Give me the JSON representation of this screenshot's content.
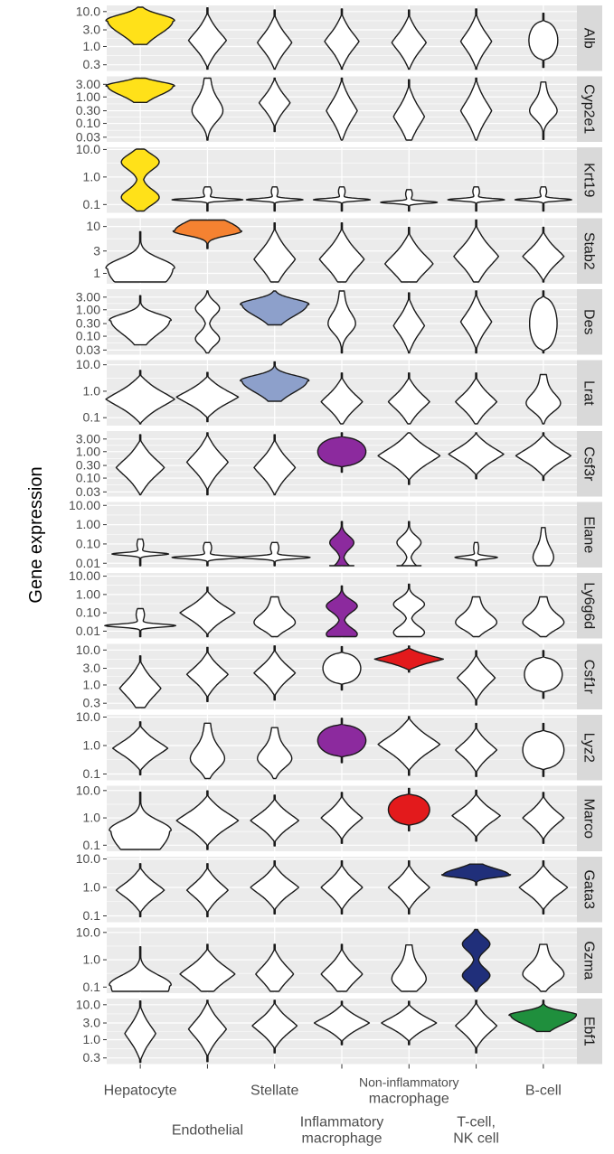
{
  "chart_data": {
    "type": "violin",
    "ylabel": "Gene expression",
    "y_scale": "log10",
    "categories": [
      "Hepatocyte",
      "Endothelial",
      "Stellate",
      "Inflammatory macrophage",
      "Non-inflammatory macrophage",
      "T-cell, NK cell",
      "B-cell"
    ],
    "category_label_lines": [
      [
        "Hepatocyte"
      ],
      [
        "Endothelial"
      ],
      [
        "Stellate"
      ],
      [
        "Inflammatory",
        "macrophage"
      ],
      [
        "Non-inflammatory",
        "macrophage"
      ],
      [
        "T-cell,",
        "NK cell"
      ],
      [
        "B-cell"
      ]
    ],
    "category_label_row": [
      0,
      1,
      0,
      1,
      0,
      1,
      0
    ],
    "colors": {
      "Hepatocyte": "#FFE119",
      "Endothelial": "#F58231",
      "Stellate": "#8DA0CB",
      "Inflammatory macrophage": "#8C2A9E",
      "Non-inflammatory macrophage": "#E31A1C",
      "T-cell, NK cell": "#202F7A",
      "B-cell": "#1F8F3D",
      "default": "#FFFFFF"
    },
    "panel_background": "#EBEBEB",
    "strip_background": "#D9D9D9",
    "grid": true,
    "panels": [
      {
        "gene": "Alb",
        "ylim": [
          0.2,
          15
        ],
        "ticks": [
          "10.0",
          "3.0",
          "1.0",
          "0.3"
        ],
        "highlight": 0,
        "violins": [
          {
            "median": 5.5,
            "spread": 0.22,
            "width": 1.0,
            "shape": "skewup"
          },
          {
            "median": 1.5,
            "spread": 0.3,
            "width": 0.55,
            "shape": "diamond"
          },
          {
            "median": 1.3,
            "spread": 0.3,
            "width": 0.5,
            "shape": "diamond"
          },
          {
            "median": 1.4,
            "spread": 0.3,
            "width": 0.5,
            "shape": "diamond"
          },
          {
            "median": 1.3,
            "spread": 0.3,
            "width": 0.5,
            "shape": "diamond"
          },
          {
            "median": 1.4,
            "spread": 0.3,
            "width": 0.45,
            "shape": "diamond"
          },
          {
            "median": 1.5,
            "spread": 0.25,
            "width": 0.42,
            "shape": "round"
          }
        ]
      },
      {
        "gene": "Cyp2e1",
        "ylim": [
          0.02,
          6
        ],
        "ticks": [
          "3.00",
          "1.00",
          "0.30",
          "0.10",
          "0.03"
        ],
        "highlight": 0,
        "violins": [
          {
            "median": 2.6,
            "spread": 0.2,
            "width": 1.0,
            "shape": "skewup"
          },
          {
            "median": 0.3,
            "spread": 0.45,
            "width": 0.45,
            "shape": "tailup"
          },
          {
            "median": 0.6,
            "spread": 0.35,
            "width": 0.45,
            "shape": "diamond"
          },
          {
            "median": 0.3,
            "spread": 0.45,
            "width": 0.45,
            "shape": "diamond"
          },
          {
            "median": 0.18,
            "spread": 0.45,
            "width": 0.45,
            "shape": "diamond"
          },
          {
            "median": 0.3,
            "spread": 0.45,
            "width": 0.45,
            "shape": "diamond"
          },
          {
            "median": 0.3,
            "spread": 0.35,
            "width": 0.4,
            "shape": "tailup"
          }
        ]
      },
      {
        "gene": "Krt19",
        "ylim": [
          0.05,
          12
        ],
        "ticks": [
          "10.0",
          "1.0",
          "0.1"
        ],
        "highlight": 0,
        "violins": [
          {
            "median": 0.8,
            "spread": 0.5,
            "width": 0.55,
            "shape": "hourglass"
          },
          {
            "median": 0.15,
            "spread": 0.15,
            "width": 1.0,
            "shape": "spike"
          },
          {
            "median": 0.15,
            "spread": 0.15,
            "width": 0.8,
            "shape": "spike"
          },
          {
            "median": 0.15,
            "spread": 0.15,
            "width": 0.8,
            "shape": "spike"
          },
          {
            "median": 0.12,
            "spread": 0.15,
            "width": 0.8,
            "shape": "spike"
          },
          {
            "median": 0.15,
            "spread": 0.15,
            "width": 0.8,
            "shape": "spike"
          },
          {
            "median": 0.15,
            "spread": 0.15,
            "width": 0.8,
            "shape": "spike"
          }
        ]
      },
      {
        "gene": "Stab2",
        "ylim": [
          0.6,
          15
        ],
        "ticks": [
          "10",
          "3",
          "1"
        ],
        "highlight": 1,
        "violins": [
          {
            "median": 1.3,
            "spread": 0.25,
            "width": 1.0,
            "shape": "skewup"
          },
          {
            "median": 8.0,
            "spread": 0.12,
            "width": 1.0,
            "shape": "skewdown"
          },
          {
            "median": 2.0,
            "spread": 0.25,
            "width": 0.6,
            "shape": "diamond"
          },
          {
            "median": 2.0,
            "spread": 0.25,
            "width": 0.65,
            "shape": "diamond"
          },
          {
            "median": 1.6,
            "spread": 0.25,
            "width": 0.7,
            "shape": "diamond"
          },
          {
            "median": 2.3,
            "spread": 0.25,
            "width": 0.65,
            "shape": "diamond"
          },
          {
            "median": 2.3,
            "spread": 0.2,
            "width": 0.6,
            "shape": "diamond"
          }
        ]
      },
      {
        "gene": "Des",
        "ylim": [
          0.02,
          6
        ],
        "ticks": [
          "3.00",
          "1.00",
          "0.30",
          "0.10",
          "0.03"
        ],
        "highlight": 2,
        "violins": [
          {
            "median": 0.4,
            "spread": 0.3,
            "width": 0.9,
            "shape": "skewup"
          },
          {
            "median": 0.3,
            "spread": 0.45,
            "width": 0.35,
            "shape": "hourglass"
          },
          {
            "median": 1.6,
            "spread": 0.25,
            "width": 1.0,
            "shape": "skewup"
          },
          {
            "median": 0.3,
            "spread": 0.4,
            "width": 0.4,
            "shape": "tailup"
          },
          {
            "median": 0.25,
            "spread": 0.4,
            "width": 0.45,
            "shape": "diamond"
          },
          {
            "median": 0.35,
            "spread": 0.4,
            "width": 0.45,
            "shape": "diamond"
          },
          {
            "median": 0.3,
            "spread": 0.45,
            "width": 0.4,
            "shape": "round"
          }
        ]
      },
      {
        "gene": "Lrat",
        "ylim": [
          0.05,
          15
        ],
        "ticks": [
          "10.0",
          "1.0",
          "0.1"
        ],
        "highlight": 2,
        "violins": [
          {
            "median": 0.5,
            "spread": 0.35,
            "width": 1.0,
            "shape": "diamond"
          },
          {
            "median": 0.6,
            "spread": 0.3,
            "width": 0.9,
            "shape": "diamond"
          },
          {
            "median": 2.5,
            "spread": 0.25,
            "width": 1.0,
            "shape": "skewup"
          },
          {
            "median": 0.4,
            "spread": 0.35,
            "width": 0.6,
            "shape": "diamond"
          },
          {
            "median": 0.4,
            "spread": 0.35,
            "width": 0.6,
            "shape": "diamond"
          },
          {
            "median": 0.4,
            "spread": 0.35,
            "width": 0.6,
            "shape": "diamond"
          },
          {
            "median": 0.35,
            "spread": 0.35,
            "width": 0.5,
            "shape": "tailup"
          }
        ]
      },
      {
        "gene": "Csf3r",
        "ylim": [
          0.02,
          6
        ],
        "ticks": [
          "3.00",
          "1.00",
          "0.30",
          "0.10",
          "0.03"
        ],
        "highlight": 3,
        "violins": [
          {
            "median": 0.25,
            "spread": 0.4,
            "width": 0.7,
            "shape": "diamond"
          },
          {
            "median": 0.4,
            "spread": 0.4,
            "width": 0.6,
            "shape": "diamond"
          },
          {
            "median": 0.25,
            "spread": 0.4,
            "width": 0.6,
            "shape": "diamond"
          },
          {
            "median": 1.0,
            "spread": 0.25,
            "width": 0.7,
            "shape": "round"
          },
          {
            "median": 0.7,
            "spread": 0.35,
            "width": 0.9,
            "shape": "diamond"
          },
          {
            "median": 0.8,
            "spread": 0.3,
            "width": 0.8,
            "shape": "diamond"
          },
          {
            "median": 0.7,
            "spread": 0.3,
            "width": 0.8,
            "shape": "diamond"
          }
        ]
      },
      {
        "gene": "Elane",
        "ylim": [
          0.006,
          15
        ],
        "ticks": [
          "10.00",
          "1.00",
          "0.10",
          "0.01"
        ],
        "highlight": 3,
        "violins": [
          {
            "median": 0.03,
            "spread": 0.25,
            "width": 0.8,
            "shape": "spike"
          },
          {
            "median": 0.02,
            "spread": 0.25,
            "width": 1.0,
            "shape": "spike"
          },
          {
            "median": 0.02,
            "spread": 0.25,
            "width": 1.0,
            "shape": "spike"
          },
          {
            "median": 0.02,
            "spread": 0.6,
            "width": 0.35,
            "shape": "hourglass"
          },
          {
            "median": 0.02,
            "spread": 0.6,
            "width": 0.35,
            "shape": "hourglass"
          },
          {
            "median": 0.02,
            "spread": 0.25,
            "width": 0.6,
            "shape": "spike"
          },
          {
            "median": 0.02,
            "spread": 0.5,
            "width": 0.3,
            "shape": "tailup"
          }
        ]
      },
      {
        "gene": "Ly6g6d",
        "ylim": [
          0.004,
          15
        ],
        "ticks": [
          "10.00",
          "1.00",
          "0.10",
          "0.01"
        ],
        "highlight": 3,
        "violins": [
          {
            "median": 0.02,
            "spread": 0.3,
            "width": 1.0,
            "shape": "spike"
          },
          {
            "median": 0.1,
            "spread": 0.45,
            "width": 0.8,
            "shape": "diamond"
          },
          {
            "median": 0.03,
            "spread": 0.45,
            "width": 0.6,
            "shape": "tailup"
          },
          {
            "median": 0.04,
            "spread": 0.6,
            "width": 0.45,
            "shape": "hourglass"
          },
          {
            "median": 0.05,
            "spread": 0.6,
            "width": 0.45,
            "shape": "hourglass"
          },
          {
            "median": 0.03,
            "spread": 0.45,
            "width": 0.6,
            "shape": "tailup"
          },
          {
            "median": 0.03,
            "spread": 0.45,
            "width": 0.6,
            "shape": "tailup"
          }
        ]
      },
      {
        "gene": "Csf1r",
        "ylim": [
          0.2,
          15
        ],
        "ticks": [
          "10.0",
          "3.0",
          "1.0",
          "0.3"
        ],
        "highlight": 4,
        "violins": [
          {
            "median": 0.8,
            "spread": 0.3,
            "width": 0.6,
            "shape": "diamond"
          },
          {
            "median": 2.0,
            "spread": 0.25,
            "width": 0.6,
            "shape": "diamond"
          },
          {
            "median": 2.2,
            "spread": 0.25,
            "width": 0.6,
            "shape": "diamond"
          },
          {
            "median": 3.0,
            "spread": 0.2,
            "width": 0.55,
            "shape": "round"
          },
          {
            "median": 5.5,
            "spread": 0.12,
            "width": 1.0,
            "shape": "diamond"
          },
          {
            "median": 1.6,
            "spread": 0.25,
            "width": 0.55,
            "shape": "diamond"
          },
          {
            "median": 2.0,
            "spread": 0.22,
            "width": 0.55,
            "shape": "round"
          }
        ]
      },
      {
        "gene": "Lyz2",
        "ylim": [
          0.06,
          12
        ],
        "ticks": [
          "10.0",
          "1.0",
          "0.1"
        ],
        "highlight": 3,
        "violins": [
          {
            "median": 0.8,
            "spread": 0.3,
            "width": 0.8,
            "shape": "diamond"
          },
          {
            "median": 0.35,
            "spread": 0.4,
            "width": 0.5,
            "shape": "tailup"
          },
          {
            "median": 0.35,
            "spread": 0.35,
            "width": 0.5,
            "shape": "tailup"
          },
          {
            "median": 1.5,
            "spread": 0.25,
            "width": 0.7,
            "shape": "round"
          },
          {
            "median": 1.1,
            "spread": 0.35,
            "width": 0.9,
            "shape": "diamond"
          },
          {
            "median": 0.7,
            "spread": 0.3,
            "width": 0.6,
            "shape": "diamond"
          },
          {
            "median": 0.7,
            "spread": 0.3,
            "width": 0.6,
            "shape": "round"
          }
        ]
      },
      {
        "gene": "Marco",
        "ylim": [
          0.06,
          15
        ],
        "ticks": [
          "10.0",
          "1.0",
          "0.1"
        ],
        "highlight": 4,
        "violins": [
          {
            "median": 0.35,
            "spread": 0.45,
            "width": 0.9,
            "shape": "skewup"
          },
          {
            "median": 0.8,
            "spread": 0.35,
            "width": 0.9,
            "shape": "diamond"
          },
          {
            "median": 0.8,
            "spread": 0.3,
            "width": 0.7,
            "shape": "diamond"
          },
          {
            "median": 1.0,
            "spread": 0.3,
            "width": 0.6,
            "shape": "diamond"
          },
          {
            "median": 2.0,
            "spread": 0.25,
            "width": 0.6,
            "shape": "round"
          },
          {
            "median": 1.2,
            "spread": 0.3,
            "width": 0.7,
            "shape": "diamond"
          },
          {
            "median": 1.0,
            "spread": 0.3,
            "width": 0.6,
            "shape": "diamond"
          }
        ]
      },
      {
        "gene": "Gata3",
        "ylim": [
          0.06,
          12
        ],
        "ticks": [
          "10.0",
          "1.0",
          "0.1"
        ],
        "highlight": 5,
        "violins": [
          {
            "median": 0.8,
            "spread": 0.3,
            "width": 0.7,
            "shape": "diamond"
          },
          {
            "median": 0.8,
            "spread": 0.3,
            "width": 0.6,
            "shape": "diamond"
          },
          {
            "median": 1.0,
            "spread": 0.3,
            "width": 0.7,
            "shape": "diamond"
          },
          {
            "median": 1.0,
            "spread": 0.3,
            "width": 0.6,
            "shape": "diamond"
          },
          {
            "median": 1.0,
            "spread": 0.3,
            "width": 0.6,
            "shape": "diamond"
          },
          {
            "median": 2.8,
            "spread": 0.12,
            "width": 1.0,
            "shape": "skewdown"
          },
          {
            "median": 1.0,
            "spread": 0.3,
            "width": 0.7,
            "shape": "diamond"
          }
        ]
      },
      {
        "gene": "Gzma",
        "ylim": [
          0.06,
          15
        ],
        "ticks": [
          "10.0",
          "1.0",
          "0.1"
        ],
        "highlight": 5,
        "violins": [
          {
            "median": 0.12,
            "spread": 0.45,
            "width": 0.9,
            "shape": "skewup"
          },
          {
            "median": 0.3,
            "spread": 0.35,
            "width": 0.8,
            "shape": "diamond"
          },
          {
            "median": 0.3,
            "spread": 0.35,
            "width": 0.55,
            "shape": "diamond"
          },
          {
            "median": 0.3,
            "spread": 0.35,
            "width": 0.6,
            "shape": "diamond"
          },
          {
            "median": 0.2,
            "spread": 0.4,
            "width": 0.5,
            "shape": "tailup"
          },
          {
            "median": 1.0,
            "spread": 0.45,
            "width": 0.4,
            "shape": "hourglass"
          },
          {
            "median": 0.3,
            "spread": 0.35,
            "width": 0.6,
            "shape": "tailup"
          }
        ]
      },
      {
        "gene": "Ebf1",
        "ylim": [
          0.2,
          15
        ],
        "ticks": [
          "10.0",
          "3.0",
          "1.0",
          "0.3"
        ],
        "highlight": 6,
        "violins": [
          {
            "median": 1.5,
            "spread": 0.3,
            "width": 0.45,
            "shape": "diamond"
          },
          {
            "median": 2.0,
            "spread": 0.3,
            "width": 0.55,
            "shape": "diamond"
          },
          {
            "median": 2.5,
            "spread": 0.25,
            "width": 0.65,
            "shape": "diamond"
          },
          {
            "median": 3.0,
            "spread": 0.2,
            "width": 0.8,
            "shape": "diamond"
          },
          {
            "median": 3.0,
            "spread": 0.2,
            "width": 0.8,
            "shape": "diamond"
          },
          {
            "median": 2.5,
            "spread": 0.25,
            "width": 0.6,
            "shape": "diamond"
          },
          {
            "median": 5.0,
            "spread": 0.15,
            "width": 1.0,
            "shape": "skewup"
          }
        ]
      }
    ]
  }
}
